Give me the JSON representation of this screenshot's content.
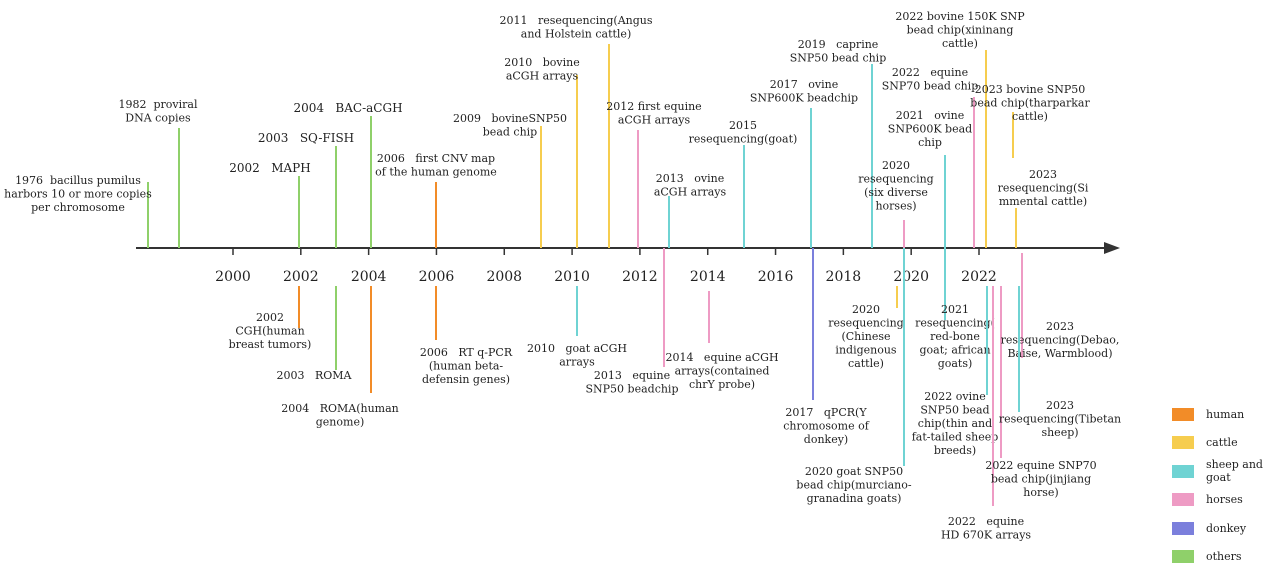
{
  "colors": {
    "human": "#f28c28",
    "cattle": "#f6cd4f",
    "sheep_goat": "#6fd3d3",
    "horses": "#ee9bc4",
    "donkey": "#7b7fdc",
    "others": "#8fd06a",
    "axis": "#333333"
  },
  "chart_data": {
    "type": "timeline",
    "x_ticks": [
      "2000",
      "2002",
      "2004",
      "2006",
      "2008",
      "2010",
      "2012",
      "2014",
      "2016",
      "2018",
      "2020",
      "2022"
    ],
    "events": [
      {
        "year": 1976,
        "category": "others",
        "side": "above",
        "lines": [
          "1976  bacillus pumilus",
          "harbors 10 or more copies",
          "per chromosome"
        ]
      },
      {
        "year": 1982,
        "category": "others",
        "side": "above",
        "lines": [
          "1982  proviral",
          "DNA copies"
        ]
      },
      {
        "year": 2002,
        "category": "others",
        "side": "above",
        "lines": [
          "2002   MAPH"
        ]
      },
      {
        "year": 2003,
        "category": "others",
        "side": "above",
        "lines": [
          "2003   SQ-FISH"
        ]
      },
      {
        "year": 2004,
        "category": "others",
        "side": "above",
        "lines": [
          "2004   BAC-aCGH"
        ]
      },
      {
        "year": 2006,
        "category": "human",
        "side": "above",
        "lines": [
          "2006   first CNV map",
          "of the human genome"
        ]
      },
      {
        "year": 2009,
        "category": "cattle",
        "side": "above",
        "lines": [
          "2009   bovineSNP50",
          "bead chip"
        ]
      },
      {
        "year": 2010,
        "category": "cattle",
        "side": "above",
        "lines": [
          "2010   bovine",
          "aCGH arrays"
        ]
      },
      {
        "year": 2011,
        "category": "cattle",
        "side": "above",
        "lines": [
          "2011   resequencing(Angus",
          "and Holstein cattle)"
        ]
      },
      {
        "year": 2012,
        "category": "horses",
        "side": "above",
        "lines": [
          "2012 first equine",
          "aCGH arrays"
        ]
      },
      {
        "year": 2013,
        "category": "sheep_goat",
        "side": "above",
        "lines": [
          "2013   ovine",
          "aCGH arrays"
        ]
      },
      {
        "year": 2015,
        "category": "sheep_goat",
        "side": "above",
        "lines": [
          "2015",
          "resequencing(goat)"
        ]
      },
      {
        "year": 2017,
        "category": "sheep_goat",
        "side": "above",
        "lines": [
          "2017   ovine",
          "SNP600K beadchip"
        ]
      },
      {
        "year": 2019,
        "category": "sheep_goat",
        "side": "above",
        "lines": [
          "2019   caprine",
          "SNP50 bead chip"
        ]
      },
      {
        "year": 2020,
        "category": "horses",
        "side": "above",
        "lines": [
          "2020",
          "resequencing",
          "(six diverse",
          "horses)"
        ]
      },
      {
        "year": 2021,
        "category": "sheep_goat",
        "side": "above",
        "lines": [
          "2021   ovine",
          "SNP600K bead",
          "chip"
        ]
      },
      {
        "year": 2022,
        "category": "horses",
        "side": "above",
        "lines": [
          "2022   equine",
          "SNP70 bead chip"
        ]
      },
      {
        "year": 2022.3,
        "category": "cattle",
        "side": "above",
        "lines": [
          "2022 bovine 150K SNP",
          "bead chip(xininang",
          "cattle)"
        ]
      },
      {
        "year": 2023,
        "category": "cattle",
        "side": "above",
        "lines": [
          "2023 bovine SNP50",
          "bead chip(tharparkar",
          "cattle)"
        ]
      },
      {
        "year": 2023.1,
        "category": "cattle",
        "side": "above",
        "lines": [
          "2023",
          "resequencing(Si",
          "mmental cattle)"
        ]
      },
      {
        "year": 2002,
        "category": "human",
        "side": "below",
        "lines": [
          "2002",
          "CGH(human",
          "breast tumors)"
        ]
      },
      {
        "year": 2003,
        "category": "others",
        "side": "below",
        "lines": [
          "2003   ROMA"
        ]
      },
      {
        "year": 2004,
        "category": "human",
        "side": "below",
        "lines": [
          "2004   ROMA(human",
          "genome)"
        ]
      },
      {
        "year": 2006,
        "category": "human",
        "side": "below",
        "lines": [
          "2006   RT q-PCR",
          "(human beta-",
          "defensin genes)"
        ]
      },
      {
        "year": 2010,
        "category": "sheep_goat",
        "side": "below",
        "lines": [
          "2010   goat aCGH",
          "arrays"
        ]
      },
      {
        "year": 2013,
        "category": "horses",
        "side": "below",
        "lines": [
          "2013   equine",
          "SNP50 beadchip"
        ]
      },
      {
        "year": 2014,
        "category": "horses",
        "side": "below",
        "lines": [
          "2014   equine aCGH",
          "arrays(contained",
          "chrY probe)"
        ]
      },
      {
        "year": 2017,
        "category": "donkey",
        "side": "below",
        "lines": [
          "2017   qPCR(Y",
          "chromosome of",
          "donkey)"
        ]
      },
      {
        "year": 2020,
        "category": "cattle",
        "side": "below",
        "lines": [
          "2020",
          "resequencing",
          "(Chinese",
          "indigenous",
          "cattle)"
        ]
      },
      {
        "year": 2020,
        "category": "sheep_goat",
        "side": "below",
        "lines": [
          "2020 goat SNP50",
          "bead chip(murciano-",
          "granadina goats)"
        ]
      },
      {
        "year": 2021,
        "category": "sheep_goat",
        "side": "below",
        "lines": [
          "2021",
          "resequencing(",
          "red-bone",
          "goat; african",
          "goats)"
        ]
      },
      {
        "year": 2022,
        "category": "sheep_goat",
        "side": "below",
        "lines": [
          "2022 ovine",
          "SNP50 bead",
          "chip(thin and",
          "fat-tailed sheep",
          "breeds)"
        ]
      },
      {
        "year": 2022,
        "category": "horses",
        "side": "below",
        "lines": [
          "2022   equine",
          "HD 670K arrays"
        ]
      },
      {
        "year": 2022.5,
        "category": "horses",
        "side": "below",
        "lines": [
          "2022 equine SNP70",
          "bead chip(jinjiang",
          "horse)"
        ]
      },
      {
        "year": 2023,
        "category": "horses",
        "side": "below",
        "lines": [
          "2023",
          "resequencing(Debao,",
          "Baise, Warmblood)"
        ]
      },
      {
        "year": 2023,
        "category": "sheep_goat",
        "side": "below",
        "lines": [
          "2023",
          "resequencing(Tibetan",
          "sheep)"
        ]
      }
    ]
  },
  "legend": [
    {
      "label": "human",
      "color_key": "human"
    },
    {
      "label": "cattle",
      "color_key": "cattle"
    },
    {
      "label": "sheep and goat",
      "color_key": "sheep_goat"
    },
    {
      "label": "horses",
      "color_key": "horses"
    },
    {
      "label": "donkey",
      "color_key": "donkey"
    },
    {
      "label": "others",
      "color_key": "others"
    }
  ]
}
